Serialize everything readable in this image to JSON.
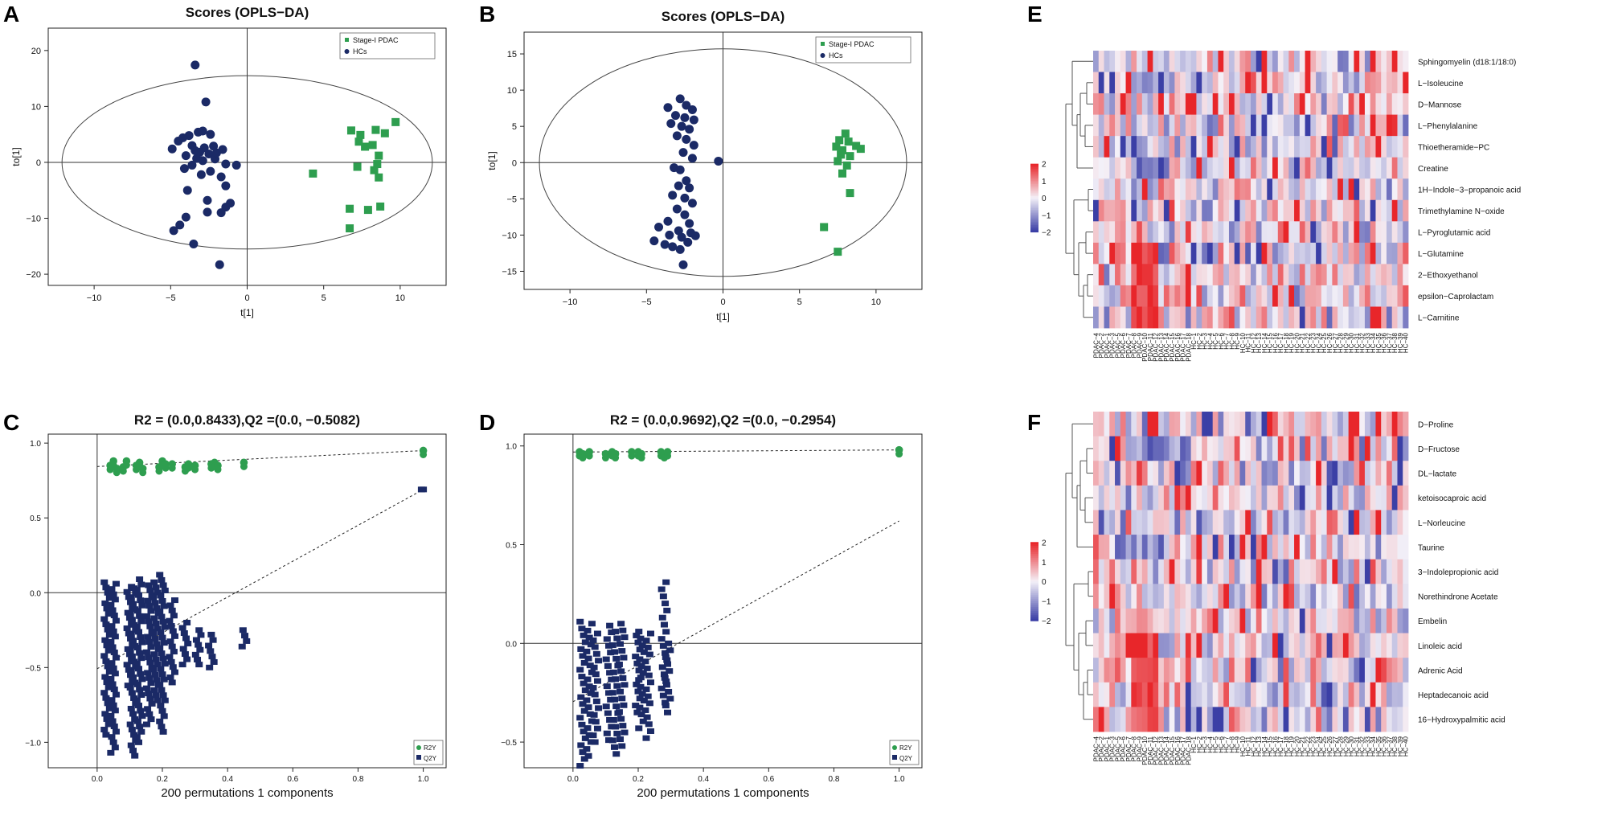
{
  "colors": {
    "green": "#2e9e4f",
    "navy": "#1b2a66",
    "heat_low": "#3b3fa6",
    "heat_mid": "#f4f1f8",
    "heat_high": "#e8262a"
  },
  "chart_data": [
    {
      "id": "A",
      "type": "scatter",
      "title": "Scores (OPLS−DA)",
      "xlabel": "t[1]",
      "ylabel": "to[1]",
      "xlim": [
        -13,
        13
      ],
      "ylim": [
        -22,
        24
      ],
      "xticks": [
        "−10",
        "−5",
        "0",
        "5",
        "10"
      ],
      "yticks": [
        "20",
        "10",
        "0",
        "−10",
        "−20"
      ],
      "ellipse": {
        "rx": 12.1,
        "ry": 15.5
      },
      "legend": [
        "Stage-I PDAC",
        "HCs"
      ],
      "series": [
        {
          "name": "Stage-I PDAC",
          "marker": "square",
          "points": [
            [
              4.3,
              -2
            ],
            [
              6.8,
              5.7
            ],
            [
              7.4,
              4.9
            ],
            [
              8.4,
              5.8
            ],
            [
              9.0,
              5.2
            ],
            [
              9.7,
              7.2
            ],
            [
              7.7,
              2.8
            ],
            [
              8.6,
              1.2
            ],
            [
              7.2,
              -0.8
            ],
            [
              8.3,
              -1.4
            ],
            [
              8.6,
              -2.7
            ],
            [
              6.7,
              -8.3
            ],
            [
              7.9,
              -8.5
            ],
            [
              8.7,
              -7.9
            ],
            [
              6.7,
              -11.8
            ],
            [
              8.2,
              3.1
            ],
            [
              7.3,
              3.7
            ],
            [
              8.5,
              -0.3
            ]
          ]
        },
        {
          "name": "HCs",
          "marker": "circle",
          "points": [
            [
              -3.4,
              17.4
            ],
            [
              -2.7,
              10.8
            ],
            [
              -3.8,
              4.8
            ],
            [
              -3.2,
              5.4
            ],
            [
              -2.9,
              5.6
            ],
            [
              -2.4,
              5.0
            ],
            [
              -4.2,
              4.4
            ],
            [
              -4.5,
              3.8
            ],
            [
              -4.9,
              2.4
            ],
            [
              -3.6,
              3.0
            ],
            [
              -2.8,
              2.6
            ],
            [
              -2.2,
              2.9
            ],
            [
              -1.6,
              2.3
            ],
            [
              -3.1,
              1.8
            ],
            [
              -2.5,
              1.5
            ],
            [
              -4.0,
              1.2
            ],
            [
              -3.3,
              0.7
            ],
            [
              -2.9,
              0.3
            ],
            [
              -2.1,
              0.6
            ],
            [
              -1.4,
              -0.3
            ],
            [
              -0.7,
              -0.5
            ],
            [
              -3.6,
              -0.5
            ],
            [
              -4.1,
              -1.1
            ],
            [
              -2.4,
              -1.6
            ],
            [
              -3.0,
              -2.2
            ],
            [
              -1.7,
              -2.6
            ],
            [
              -3.9,
              -5.0
            ],
            [
              -2.6,
              -6.8
            ],
            [
              -1.4,
              -4.2
            ],
            [
              -1.1,
              -7.3
            ],
            [
              -1.4,
              -8.0
            ],
            [
              -1.7,
              -9.0
            ],
            [
              -2.6,
              -8.9
            ],
            [
              -4.0,
              -9.8
            ],
            [
              -4.4,
              -11.2
            ],
            [
              -4.8,
              -12.2
            ],
            [
              -3.5,
              -14.6
            ],
            [
              -1.8,
              -18.3
            ],
            [
              -3.4,
              2.1
            ],
            [
              -2.0,
              1.7
            ]
          ]
        }
      ]
    },
    {
      "id": "B",
      "type": "scatter",
      "title": "Scores (OPLS−DA)",
      "xlabel": "t[1]",
      "ylabel": "to[1]",
      "xlim": [
        -13,
        13
      ],
      "ylim": [
        -17.5,
        18
      ],
      "xticks": [
        "−10",
        "−5",
        "0",
        "5",
        "10"
      ],
      "yticks": [
        "15",
        "10",
        "5",
        "0",
        "−5",
        "−10",
        "−15"
      ],
      "ellipse": {
        "rx": 12.0,
        "ry": 15.7
      },
      "legend": [
        "Stage-I PDAC",
        "HCs"
      ],
      "series": [
        {
          "name": "Stage-I PDAC",
          "marker": "square",
          "points": [
            [
              8.0,
              4.0
            ],
            [
              7.6,
              3.1
            ],
            [
              8.2,
              2.9
            ],
            [
              7.4,
              2.2
            ],
            [
              8.7,
              2.3
            ],
            [
              9.0,
              1.9
            ],
            [
              7.7,
              1.1
            ],
            [
              8.3,
              0.9
            ],
            [
              7.5,
              0.2
            ],
            [
              8.1,
              -0.4
            ],
            [
              7.8,
              -1.5
            ],
            [
              8.3,
              -4.2
            ],
            [
              6.6,
              -8.9
            ],
            [
              7.5,
              -12.3
            ],
            [
              7.8,
              1.7
            ]
          ]
        },
        {
          "name": "HCs",
          "marker": "circle",
          "points": [
            [
              -2.8,
              8.8
            ],
            [
              -2.4,
              7.9
            ],
            [
              -3.6,
              7.6
            ],
            [
              -2.0,
              7.3
            ],
            [
              -3.1,
              6.5
            ],
            [
              -2.5,
              6.2
            ],
            [
              -1.9,
              5.9
            ],
            [
              -3.4,
              5.4
            ],
            [
              -2.7,
              5.0
            ],
            [
              -2.2,
              4.6
            ],
            [
              -3.0,
              3.7
            ],
            [
              -2.4,
              3.2
            ],
            [
              -1.9,
              2.4
            ],
            [
              -2.6,
              1.4
            ],
            [
              -2.0,
              0.6
            ],
            [
              -0.3,
              0.2
            ],
            [
              -3.2,
              -0.7
            ],
            [
              -2.8,
              -1.0
            ],
            [
              -2.4,
              -2.5
            ],
            [
              -2.9,
              -3.2
            ],
            [
              -2.2,
              -3.5
            ],
            [
              -3.3,
              -4.5
            ],
            [
              -2.5,
              -4.9
            ],
            [
              -2.0,
              -5.6
            ],
            [
              -3.0,
              -6.4
            ],
            [
              -2.5,
              -7.2
            ],
            [
              -3.6,
              -8.1
            ],
            [
              -2.2,
              -8.4
            ],
            [
              -4.2,
              -8.9
            ],
            [
              -2.9,
              -9.4
            ],
            [
              -3.5,
              -10.0
            ],
            [
              -2.7,
              -10.3
            ],
            [
              -1.8,
              -10.1
            ],
            [
              -4.5,
              -10.8
            ],
            [
              -3.8,
              -11.3
            ],
            [
              -2.3,
              -11.0
            ],
            [
              -2.8,
              -12.0
            ],
            [
              -2.6,
              -14.1
            ],
            [
              -2.1,
              -9.7
            ],
            [
              -3.3,
              -11.6
            ]
          ]
        }
      ]
    },
    {
      "id": "C",
      "type": "scatter",
      "title": "R2 = (0.0,0.8433),Q2 =(0.0, −0.5082)",
      "xlabel": "200 permutations 1 components",
      "ylabel": "",
      "xlim": [
        -0.15,
        1.07
      ],
      "ylim": [
        -1.17,
        1.06
      ],
      "xticks": [
        "0.0",
        "0.2",
        "0.4",
        "0.6",
        "0.8",
        "1.0"
      ],
      "yticks": [
        "1.0",
        "0.5",
        "0.0",
        "−0.5",
        "−1.0"
      ],
      "legend": [
        "R2Y",
        "Q2Y"
      ],
      "r2_line": [
        0.8433,
        0.95
      ],
      "q2_line": [
        -0.5082,
        0.69
      ],
      "r2": {
        "x": [
          0.04,
          0.05,
          0.06,
          0.08,
          0.09,
          0.12,
          0.13,
          0.14,
          0.19,
          0.2,
          0.21,
          0.23,
          0.27,
          0.28,
          0.3,
          0.35,
          0.36,
          0.37,
          0.45,
          1.0
        ],
        "y": [
          0.85,
          0.88,
          0.83,
          0.84,
          0.88,
          0.85,
          0.87,
          0.83,
          0.84,
          0.88,
          0.86,
          0.86,
          0.84,
          0.86,
          0.85,
          0.86,
          0.87,
          0.85,
          0.87,
          0.95
        ]
      },
      "q2": {
        "x": [
          0.03,
          0.05,
          0.1,
          0.11,
          0.13,
          0.16,
          0.18,
          0.2,
          0.23,
          0.27,
          0.31,
          0.35,
          0.45,
          1.0
        ],
        "ymin": [
          -0.95,
          -1.07,
          -0.62,
          -1.09,
          -1.0,
          -0.88,
          -0.72,
          -0.93,
          -0.6,
          -0.48,
          -0.48,
          -0.5,
          -0.36,
          0.69
        ],
        "ymax": [
          0.07,
          0.06,
          0.04,
          0.03,
          0.09,
          0.05,
          0.07,
          0.12,
          -0.05,
          -0.2,
          -0.25,
          -0.28,
          -0.25,
          0.69
        ]
      }
    },
    {
      "id": "D",
      "type": "scatter",
      "title": "R2 = (0.0,0.9692),Q2 =(0.0, −0.2954)",
      "xlabel": "200 permutations 1 components",
      "ylabel": "",
      "xlim": [
        -0.15,
        1.07
      ],
      "ylim": [
        -0.63,
        1.06
      ],
      "xticks": [
        "0.0",
        "0.2",
        "0.4",
        "0.6",
        "0.8",
        "1.0"
      ],
      "yticks": [
        "1.0",
        "0.5",
        "0.0",
        "−0.5"
      ],
      "legend": [
        "R2Y",
        "Q2Y"
      ],
      "r2_line": [
        0.9692,
        0.98
      ],
      "q2_line": [
        -0.2954,
        0.62
      ],
      "r2": {
        "x": [
          0.02,
          0.03,
          0.05,
          0.1,
          0.12,
          0.13,
          0.18,
          0.2,
          0.21,
          0.27,
          0.28,
          0.29,
          1.0
        ],
        "y": [
          0.97,
          0.96,
          0.97,
          0.96,
          0.97,
          0.96,
          0.97,
          0.97,
          0.96,
          0.97,
          0.96,
          0.97,
          0.98
        ]
      },
      "q2": {
        "x": [
          0.03,
          0.05,
          0.07,
          0.11,
          0.13,
          0.15,
          0.2,
          0.21,
          0.23,
          0.28,
          0.29
        ],
        "ymin": [
          -0.62,
          -0.57,
          -0.5,
          -0.49,
          -0.56,
          -0.52,
          -0.35,
          -0.43,
          -0.48,
          -0.3,
          -0.35
        ],
        "ymax": [
          0.11,
          0.1,
          0.05,
          0.09,
          0.06,
          0.1,
          0.04,
          0.06,
          0.05,
          0.31,
          0.0
        ]
      }
    },
    {
      "id": "E",
      "type": "heatmap",
      "rows": [
        "Sphingomyelin (d18:1/18:0)",
        "L−Isoleucine",
        "D−Mannose",
        "L−Phenylalanine",
        "Thioetheramide−PC",
        "Creatine",
        "1H−Indole−3−propanoic acid",
        "Trimethylamine N−oxide",
        "L−Pyroglutamic acid",
        "L−Glutamine",
        "2−Ethoxyethanol",
        "epsilon−Caprolactam",
        "L−Carnitine"
      ],
      "columns": [
        "PDAC−4",
        "PDAC−2",
        "PDAC−1",
        "PDAC−3",
        "PDAC−5",
        "PDAC−6",
        "PDAC−7",
        "PDAC−8",
        "PDAC−9",
        "PDAC−10",
        "PDAC−11",
        "PDAC−12",
        "PDAC−13",
        "PDAC−14",
        "PDAC−15",
        "PDAC−16",
        "PDAC−17",
        "PDAC−18",
        "HC−1",
        "HC−2",
        "HC−3",
        "HC−4",
        "HC−5",
        "HC−6",
        "HC−7",
        "HC−8",
        "HC−9",
        "HC−10",
        "HC−11",
        "HC−12",
        "HC−13",
        "HC−14",
        "HC−15",
        "HC−16",
        "HC−17",
        "HC−18",
        "HC−19",
        "HC−20",
        "HC−21",
        "HC−22",
        "HC−23",
        "HC−24",
        "HC−25",
        "HC−26",
        "HC−27",
        "HC−28",
        "HC−29",
        "HC−30",
        "HC−31",
        "HC−32",
        "HC−33",
        "HC−34",
        "HC−35",
        "HC−36",
        "HC−37",
        "HC−38",
        "HC−39",
        "HC−40"
      ],
      "color_scale": {
        "ticks": [
          "2",
          "1",
          "0",
          "−1",
          "−2"
        ],
        "min": -2,
        "max": 2
      },
      "seed": 11
    },
    {
      "id": "F",
      "type": "heatmap",
      "rows": [
        "D−Proline",
        "D−Fructose",
        "DL−lactate",
        "ketoisocaproic acid",
        "L−Norleucine",
        "Taurine",
        "3−Indolepropionic acid",
        "Norethindrone Acetate",
        "Embelin",
        "Linoleic acid",
        "Adrenic Acid",
        "Heptadecanoic acid",
        "16−Hydroxypalmitic acid"
      ],
      "columns": [
        "PDAC−4",
        "PDAC−2",
        "PDAC−1",
        "PDAC−3",
        "PDAC−5",
        "PDAC−6",
        "PDAC−7",
        "PDAC−8",
        "PDAC−9",
        "PDAC−10",
        "PDAC−11",
        "PDAC−12",
        "PDAC−13",
        "PDAC−14",
        "PDAC−15",
        "PDAC−16",
        "PDAC−17",
        "PDAC−18",
        "HC−1",
        "HC−2",
        "HC−3",
        "HC−4",
        "HC−5",
        "HC−6",
        "HC−7",
        "HC−8",
        "HC−9",
        "HC−10",
        "HC−11",
        "HC−12",
        "HC−13",
        "HC−14",
        "HC−15",
        "HC−16",
        "HC−17",
        "HC−18",
        "HC−19",
        "HC−20",
        "HC−21",
        "HC−22",
        "HC−23",
        "HC−24",
        "HC−25",
        "HC−26",
        "HC−27",
        "HC−28",
        "HC−29",
        "HC−30",
        "HC−31",
        "HC−32",
        "HC−33",
        "HC−34",
        "HC−35",
        "HC−36",
        "HC−37",
        "HC−38",
        "HC−39",
        "HC−40"
      ],
      "color_scale": {
        "ticks": [
          "2",
          "1",
          "0",
          "−1",
          "−2"
        ],
        "min": -2,
        "max": 2
      },
      "seed": 29
    }
  ],
  "panels": {
    "A": "A",
    "B": "B",
    "C": "C",
    "D": "D",
    "E": "E",
    "F": "F"
  }
}
